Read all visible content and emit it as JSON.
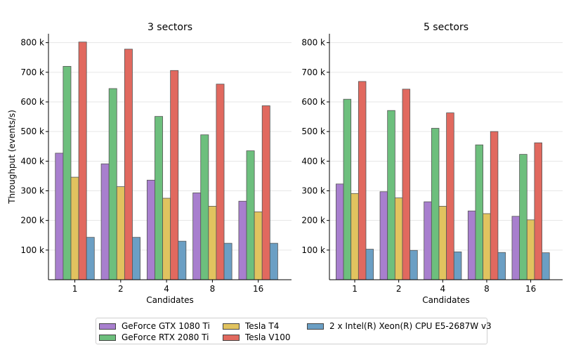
{
  "chart_data": [
    {
      "type": "bar",
      "title": "3 sectors",
      "xlabel": "Candidates",
      "ylabel": "Throughput (events/s)",
      "categories": [
        "1",
        "2",
        "4",
        "8",
        "16"
      ],
      "ylim": [
        0,
        830000
      ],
      "yticks": [
        100000,
        200000,
        300000,
        400000,
        500000,
        600000,
        700000,
        800000
      ],
      "ytick_labels": [
        "100 k",
        "200 k",
        "300 k",
        "400 k",
        "500 k",
        "600 k",
        "700 k",
        "800 k"
      ],
      "series": [
        {
          "name": "GeForce GTX 1080 Ti",
          "values": [
            427000,
            391000,
            336000,
            293000,
            265000
          ]
        },
        {
          "name": "GeForce RTX 2080 Ti",
          "values": [
            720000,
            645000,
            551000,
            489000,
            435000
          ]
        },
        {
          "name": "Tesla T4",
          "values": [
            346000,
            314000,
            275000,
            248000,
            229000
          ]
        },
        {
          "name": "Tesla V100",
          "values": [
            802000,
            778000,
            706000,
            660000,
            587000
          ]
        },
        {
          "name": "2 x Intel(R) Xeon(R) CPU E5-2687W v3",
          "values": [
            143000,
            143000,
            130000,
            123000,
            123000
          ]
        }
      ]
    },
    {
      "type": "bar",
      "title": "5 sectors",
      "xlabel": "Candidates",
      "ylabel": "",
      "categories": [
        "1",
        "2",
        "4",
        "8",
        "16"
      ],
      "ylim": [
        0,
        830000
      ],
      "yticks": [
        100000,
        200000,
        300000,
        400000,
        500000,
        600000,
        700000,
        800000
      ],
      "ytick_labels": [
        "100 k",
        "200 k",
        "300 k",
        "400 k",
        "500 k",
        "600 k",
        "700 k",
        "800 k"
      ],
      "series": [
        {
          "name": "GeForce GTX 1080 Ti",
          "values": [
            323000,
            297000,
            263000,
            232000,
            214000
          ]
        },
        {
          "name": "GeForce RTX 2080 Ti",
          "values": [
            609000,
            571000,
            511000,
            455000,
            423000
          ]
        },
        {
          "name": "Tesla T4",
          "values": [
            291000,
            276000,
            248000,
            223000,
            202000
          ]
        },
        {
          "name": "Tesla V100",
          "values": [
            669000,
            643000,
            563000,
            500000,
            462000
          ]
        },
        {
          "name": "2 x Intel(R) Xeon(R) CPU E5-2687W v3",
          "values": [
            103000,
            99000,
            94000,
            92000,
            91000
          ]
        }
      ]
    }
  ],
  "colors": [
    "#a87fce",
    "#6dbf7d",
    "#e1c35f",
    "#e1695f",
    "#6b9fc4"
  ],
  "legend": {
    "items": [
      {
        "label": "GeForce GTX 1080 Ti"
      },
      {
        "label": "GeForce RTX 2080 Ti"
      },
      {
        "label": "Tesla T4"
      },
      {
        "label": "Tesla V100"
      },
      {
        "label": "2 x Intel(R) Xeon(R) CPU E5-2687W v3"
      }
    ]
  }
}
